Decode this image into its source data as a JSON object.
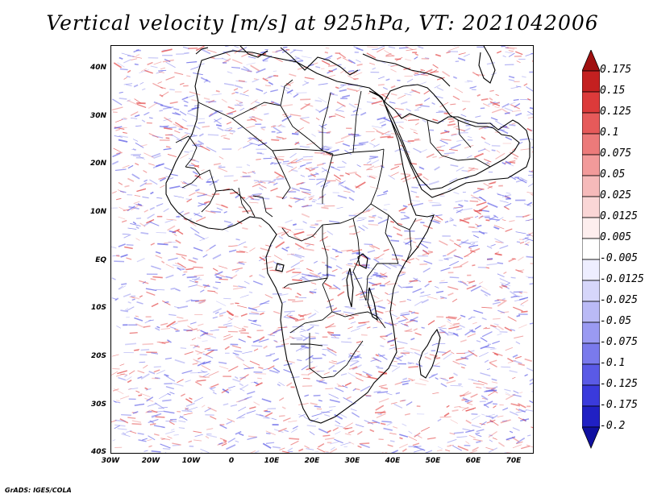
{
  "title": "Vertical velocity [m/s] at 925hPa, VT: 2021042006",
  "footer": "GrADS: IGES/COLA",
  "map": {
    "lon_range": [
      -30,
      75
    ],
    "lat_range": [
      -40,
      45
    ],
    "lat_ticks": [
      {
        "value": 40,
        "label": "40N"
      },
      {
        "value": 30,
        "label": "30N"
      },
      {
        "value": 20,
        "label": "20N"
      },
      {
        "value": 10,
        "label": "10N"
      },
      {
        "value": 0,
        "label": "EQ"
      },
      {
        "value": -10,
        "label": "10S"
      },
      {
        "value": -20,
        "label": "20S"
      },
      {
        "value": -30,
        "label": "30S"
      },
      {
        "value": -40,
        "label": "40S"
      }
    ],
    "lon_ticks": [
      {
        "value": -30,
        "label": "30W"
      },
      {
        "value": -20,
        "label": "20W"
      },
      {
        "value": -10,
        "label": "10W"
      },
      {
        "value": 0,
        "label": "0"
      },
      {
        "value": 10,
        "label": "10E"
      },
      {
        "value": 20,
        "label": "20E"
      },
      {
        "value": 30,
        "label": "30E"
      },
      {
        "value": 40,
        "label": "40E"
      },
      {
        "value": 50,
        "label": "50E"
      },
      {
        "value": 60,
        "label": "60E"
      },
      {
        "value": 70,
        "label": "70E"
      }
    ],
    "colors": {
      "positive": "#e24040",
      "negative": "#5a5ae6",
      "land_outline": "#000000"
    }
  },
  "colorbar": {
    "levels": [
      "0.175",
      "0.15",
      "0.125",
      "0.1",
      "0.075",
      "0.05",
      "0.025",
      "0.0125",
      "0.005",
      "-0.005",
      "-0.0125",
      "-0.025",
      "-0.05",
      "-0.075",
      "-0.1",
      "-0.125",
      "-0.175",
      "-0.2"
    ],
    "colors": [
      "#a01010",
      "#c42020",
      "#dc3a3a",
      "#e65a5a",
      "#ec7a7a",
      "#f29a9a",
      "#f6baba",
      "#fad6d6",
      "#fdeeee",
      "#ffffff",
      "#eeeeff",
      "#d6d6fa",
      "#babaf6",
      "#9a9af2",
      "#7a7aec",
      "#5a5ae6",
      "#3a3adc",
      "#2020c4",
      "#1010a0"
    ]
  }
}
